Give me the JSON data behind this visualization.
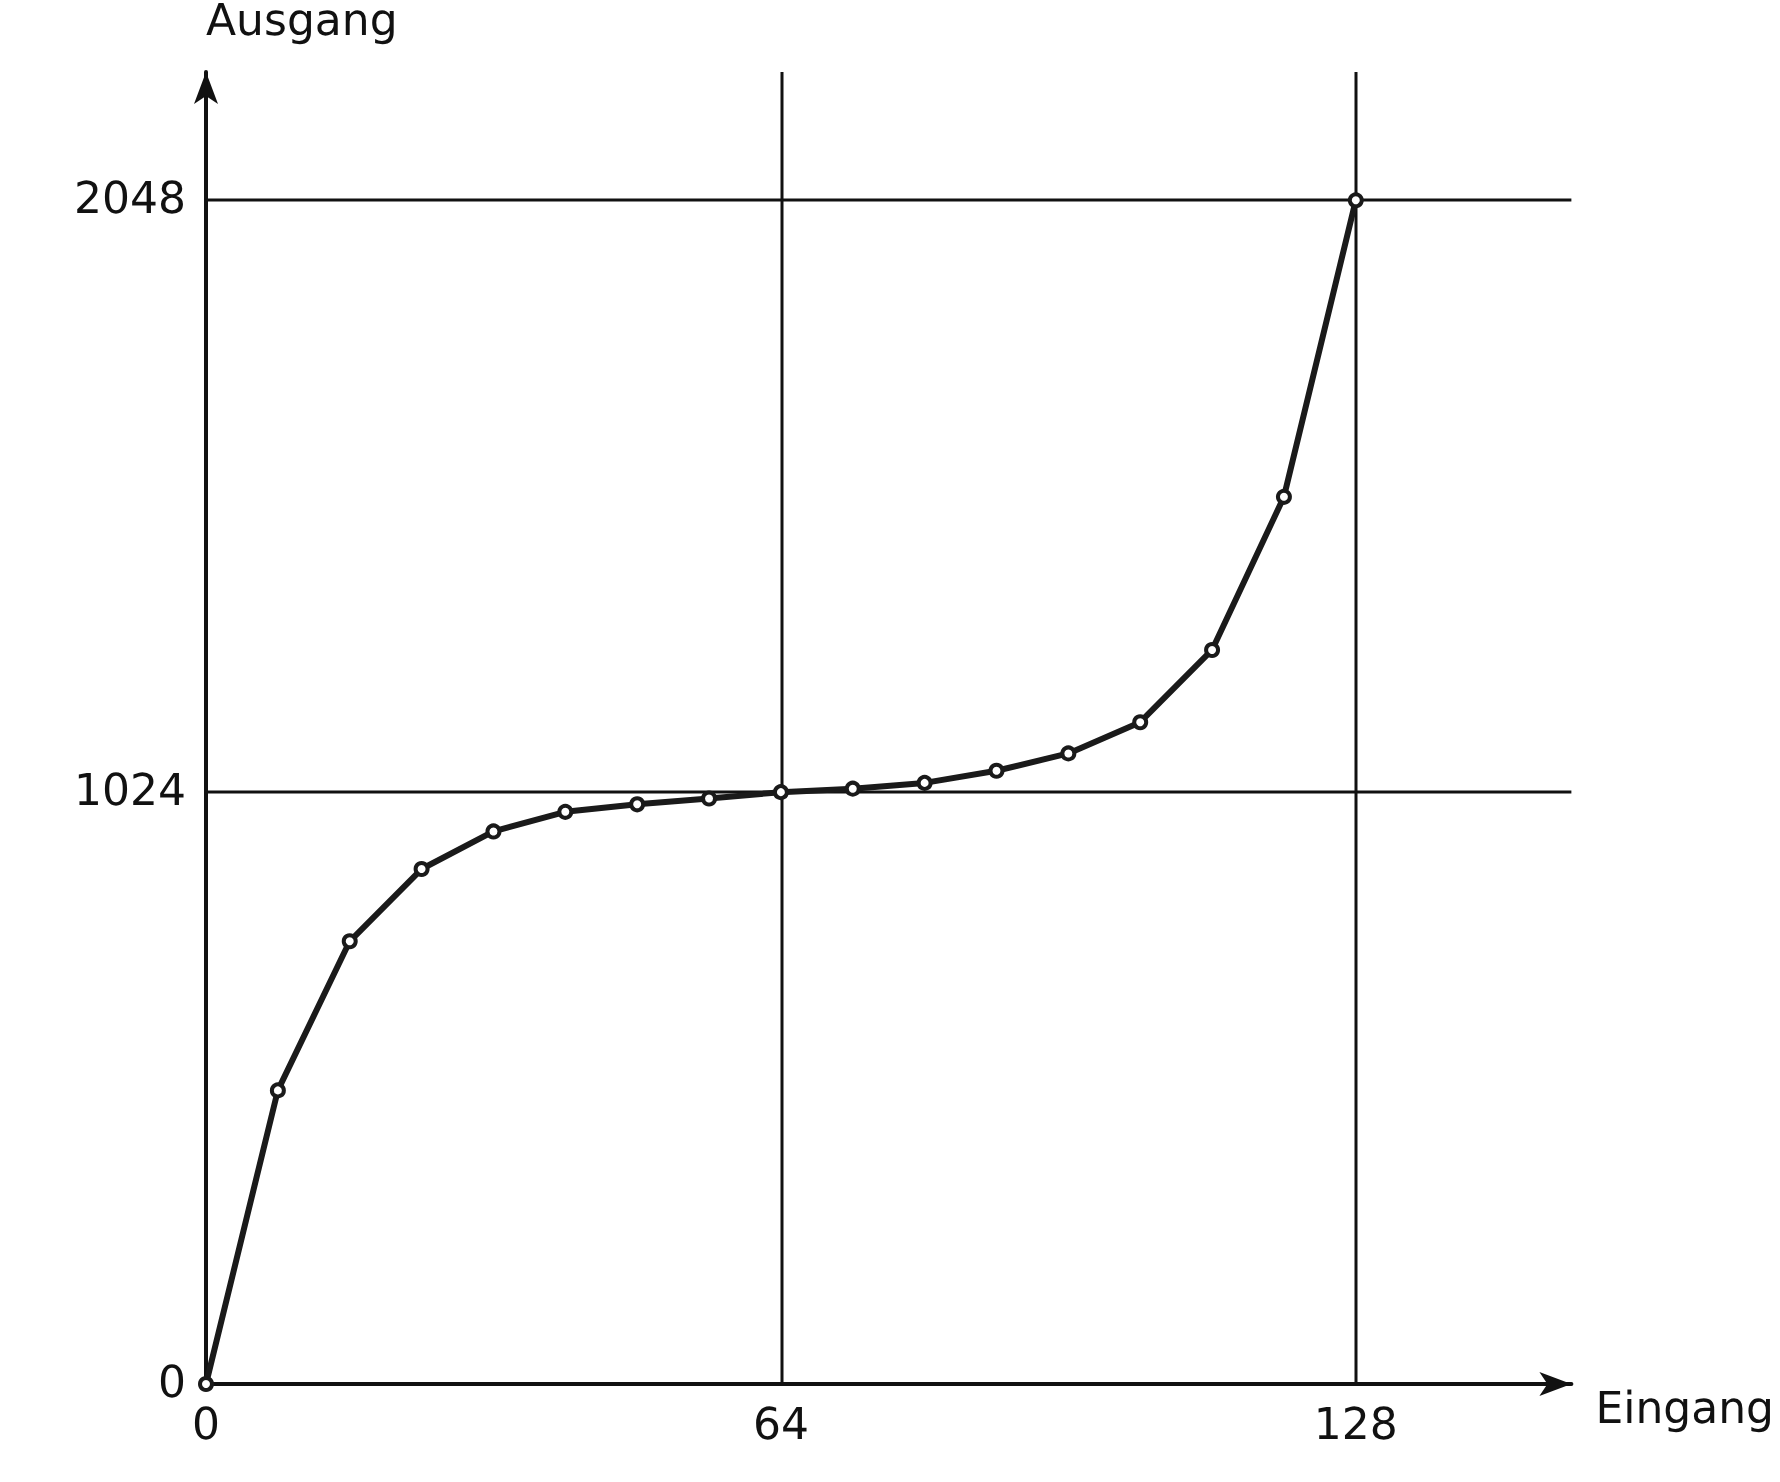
{
  "chart_data": {
    "type": "line",
    "xlabel": "Eingang",
    "ylabel": "Ausgang",
    "x": [
      0,
      8,
      16,
      24,
      32,
      40,
      48,
      56,
      64,
      72,
      80,
      88,
      96,
      104,
      112,
      120,
      128
    ],
    "values": [
      0,
      508,
      766,
      891,
      956,
      990,
      1003,
      1013,
      1024,
      1030,
      1040,
      1061,
      1091,
      1145,
      1270,
      1535,
      2048
    ],
    "color": "#1a1a1a",
    "xlim": [
      0,
      152
    ],
    "ylim": [
      0,
      2270
    ],
    "xticks": [
      0,
      64,
      128
    ],
    "yticks": [
      0,
      1024,
      2048
    ],
    "grid": true,
    "marker": "circle",
    "line_style": "solid"
  }
}
